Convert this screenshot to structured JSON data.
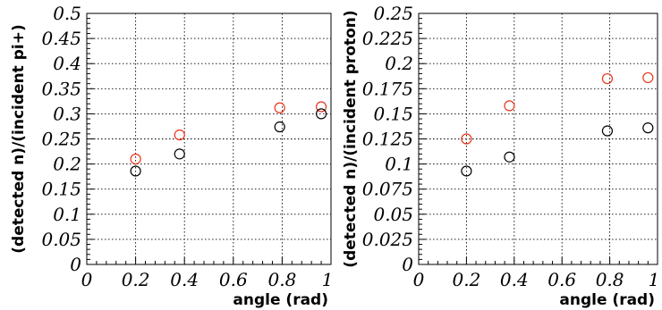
{
  "chart_data": [
    {
      "type": "scatter",
      "xlabel": "angle (rad)",
      "ylabel": "(detected n)/(incident pi+)",
      "xlim": [
        0,
        1
      ],
      "ylim": [
        0,
        0.5
      ],
      "x_ticks": [
        "0",
        "0.2",
        "0.4",
        "0.6",
        "0.8",
        "1"
      ],
      "y_ticks": [
        "0",
        "0.05",
        "0.1",
        "0.15",
        "0.2",
        "0.25",
        "0.3",
        "0.35",
        "0.4",
        "0.45",
        "0.5"
      ],
      "grid": true,
      "marker": "open-circle",
      "series": [
        {
          "color": "#e8341c",
          "x": [
            0.2,
            0.38,
            0.79,
            0.96
          ],
          "y": [
            0.21,
            0.258,
            0.312,
            0.314
          ]
        },
        {
          "color": "#000000",
          "x": [
            0.2,
            0.38,
            0.79,
            0.96
          ],
          "y": [
            0.186,
            0.22,
            0.274,
            0.3
          ]
        }
      ]
    },
    {
      "type": "scatter",
      "xlabel": "angle (rad)",
      "ylabel": "(detected n)/(incident proton)",
      "xlim": [
        0,
        1
      ],
      "ylim": [
        0,
        0.25
      ],
      "x_ticks": [
        "0",
        "0.2",
        "0.4",
        "0.6",
        "0.8",
        "1"
      ],
      "y_ticks": [
        "0",
        "0.025",
        "0.05",
        "0.075",
        "0.1",
        "0.125",
        "0.15",
        "0.175",
        "0.2",
        "0.225",
        "0.25"
      ],
      "grid": true,
      "marker": "open-circle",
      "series": [
        {
          "color": "#e8341c",
          "x": [
            0.2,
            0.38,
            0.79,
            0.96
          ],
          "y": [
            0.125,
            0.158,
            0.185,
            0.186
          ]
        },
        {
          "color": "#000000",
          "x": [
            0.2,
            0.38,
            0.79,
            0.96
          ],
          "y": [
            0.093,
            0.107,
            0.133,
            0.136
          ]
        }
      ]
    }
  ]
}
